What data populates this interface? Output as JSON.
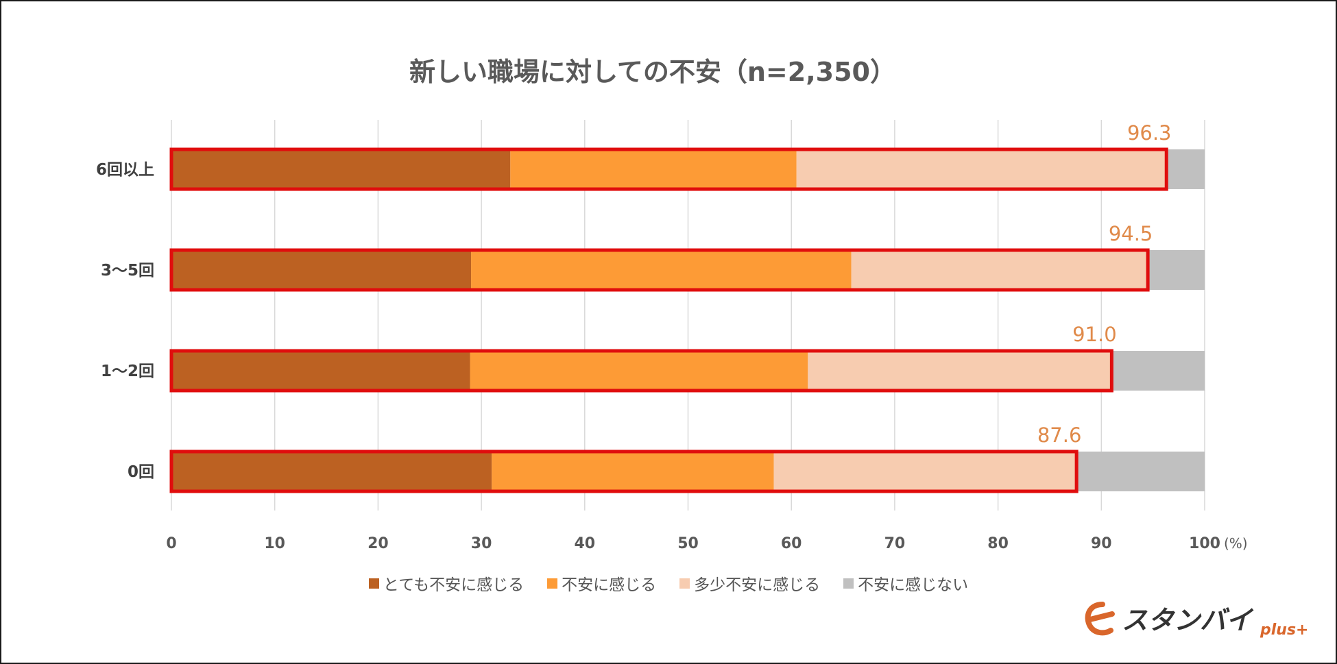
{
  "chart_data": {
    "type": "bar",
    "orientation": "horizontal",
    "stacked": true,
    "title": "新しい職場に対しての不安（n=2,350）",
    "categories": [
      "6回以上",
      "3～5回",
      "1～2回",
      "0回"
    ],
    "series": [
      {
        "name": "とても不安に感じる",
        "color": "#bc6122",
        "values": [
          32.8,
          29.0,
          28.9,
          31.0
        ]
      },
      {
        "name": "不安に感じる",
        "color": "#fd9b36",
        "values": [
          27.7,
          36.8,
          32.7,
          27.3
        ]
      },
      {
        "name": "多少不安に感じる",
        "color": "#f7ccb0",
        "values": [
          35.8,
          28.7,
          29.4,
          29.3
        ]
      },
      {
        "name": "不安に感じない",
        "color": "#c0c0c0",
        "values": [
          3.7,
          5.5,
          9.0,
          12.4
        ]
      }
    ],
    "annotations": {
      "values": [
        "96.3",
        "94.5",
        "91.0",
        "87.6"
      ],
      "color": "#e08a4a",
      "highlight_color": "#e00d0d"
    },
    "x_ticks": [
      "0",
      "10",
      "20",
      "30",
      "40",
      "50",
      "60",
      "70",
      "80",
      "90",
      "100"
    ],
    "x_unit": "(%)",
    "xlim": [
      0,
      100
    ],
    "grid": true,
    "legend_position": "bottom"
  },
  "logo": {
    "brand": "スタンバイ",
    "suffix": "plus+",
    "color": "#d9662b",
    "text_color": "#333333"
  }
}
